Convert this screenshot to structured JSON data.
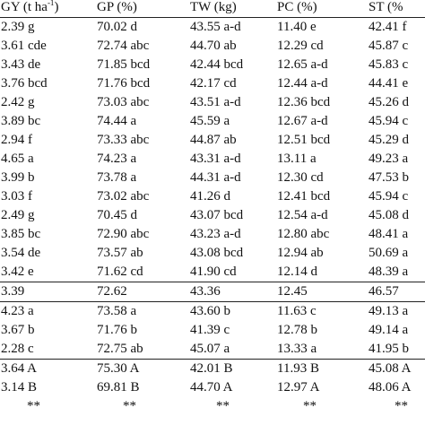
{
  "table": {
    "header": [
      {
        "text": "GY (t ha",
        "sup": "-1",
        "tail": ")"
      },
      {
        "text": "GP (%)"
      },
      {
        "text": "TW (kg)"
      },
      {
        "text": "PC (%)"
      },
      {
        "text": "ST (%"
      }
    ],
    "sections": [
      [
        [
          "2.39 g",
          "70.02 d",
          "43.55 a-d",
          "11.40 e",
          "42.41 f"
        ],
        [
          "3.61 cde",
          "72.74 abc",
          "44.70 ab",
          "12.29 cd",
          "45.87 c"
        ],
        [
          "3.43 de",
          "71.85 bcd",
          "42.44 bcd",
          "12.65 a-d",
          "45.83 c"
        ],
        [
          "3.76 bcd",
          "71.76 bcd",
          "42.17 cd",
          "12.44 a-d",
          "44.41 e"
        ],
        [
          "2.42 g",
          "73.03 abc",
          "43.51 a-d",
          "12.36 bcd",
          "45.26 d"
        ],
        [
          "3.89 bc",
          "74.44 a",
          "45.59 a",
          "12.67 a-d",
          "45.94 c"
        ],
        [
          "2.94 f",
          "73.33 abc",
          "44.87 ab",
          "12.51 bcd",
          "45.29 d"
        ],
        [
          "4.65 a",
          "74.23 a",
          "43.31 a-d",
          "13.11 a",
          "49.23 a"
        ],
        [
          "3.99 b",
          "73.78 a",
          "44.31 a-d",
          "12.30 cd",
          "47.53 b"
        ],
        [
          "3.03 f",
          "73.02 abc",
          "41.26 d",
          "12.41 bcd",
          "45.94 c"
        ],
        [
          "2.49 g",
          "70.45 d",
          "43.07 bcd",
          "12.54 a-d",
          "45.08 d"
        ],
        [
          "3.85 bc",
          "72.90 abc",
          "43.23 a-d",
          "12.80 abc",
          "48.41 a"
        ],
        [
          "3.54 de",
          "73.57 ab",
          "43.08 bcd",
          "12.94 ab",
          "50.69 a"
        ],
        [
          "3.42 e",
          "71.62 cd",
          "41.90 cd",
          "12.14 d",
          "48.39 a"
        ]
      ],
      [
        [
          "3.39",
          "72.62",
          "43.36",
          "12.45",
          "46.57"
        ]
      ],
      [
        [
          "4.23 a",
          "73.58 a",
          "43.60 b",
          "11.63 c",
          "49.13 a"
        ],
        [
          "3.67 b",
          "71.76 b",
          "41.39 c",
          "12.78 b",
          "49.14 a"
        ],
        [
          "2.28 c",
          "72.75 ab",
          "45.07 a",
          "13.33 a",
          "41.95 b"
        ]
      ],
      [
        [
          "3.64 A",
          "75.30 A",
          "42.01 B",
          "11.93 B",
          "45.08 A"
        ],
        [
          "3.14 B",
          "69.81 B",
          "44.70 A",
          "12.97 A",
          "48.06 A"
        ],
        [
          "**",
          "**",
          "**",
          "**",
          "**"
        ]
      ]
    ]
  }
}
